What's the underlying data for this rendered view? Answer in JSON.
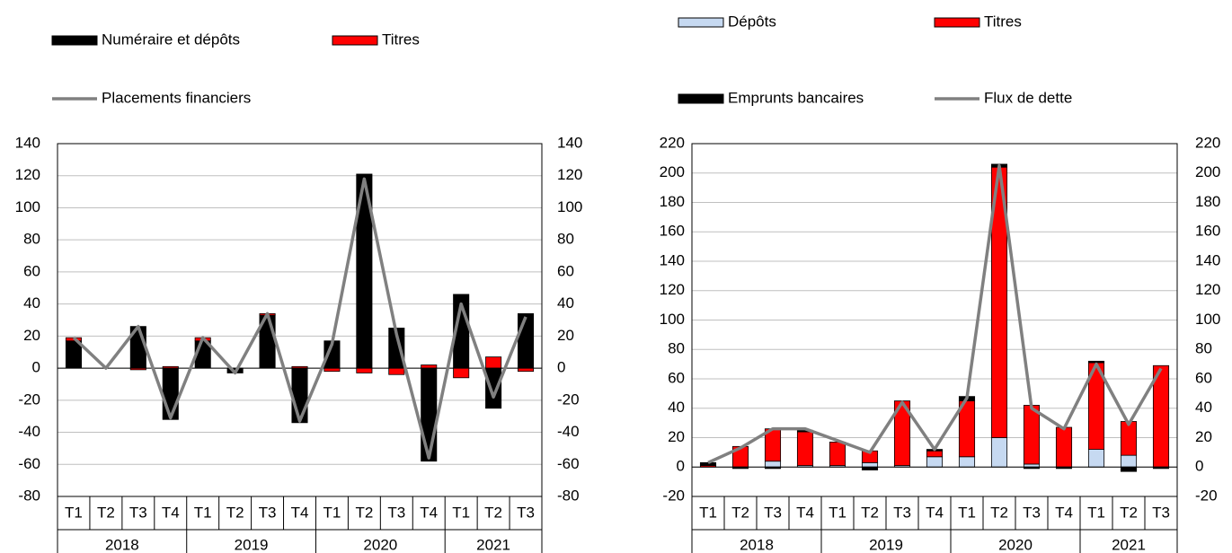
{
  "chart_data": [
    {
      "type": "bar",
      "categories": [
        "T1",
        "T2",
        "T3",
        "T4",
        "T1",
        "T2",
        "T3",
        "T4",
        "T1",
        "T2",
        "T3",
        "T4",
        "T1",
        "T2",
        "T3"
      ],
      "x_groups": [
        "2018",
        "2019",
        "2020",
        "2021"
      ],
      "series": [
        {
          "name": "Numéraire et dépôts",
          "type": "bar",
          "color": "#000000",
          "values": [
            17,
            0,
            26,
            -32,
            17,
            -3,
            33,
            -34,
            17,
            121,
            25,
            -58,
            46,
            -25,
            34
          ]
        },
        {
          "name": "Titres",
          "type": "bar",
          "color": "#ff0000",
          "values": [
            2,
            0,
            -1,
            1,
            2,
            0,
            1,
            1,
            -2,
            -3,
            -4,
            2,
            -6,
            7,
            -2
          ]
        },
        {
          "name": "Placements financiers",
          "type": "line",
          "color": "#808080",
          "values": [
            19,
            0,
            26,
            -31,
            19,
            -3,
            34,
            -33,
            15,
            118,
            21,
            -56,
            40,
            -18,
            32
          ]
        }
      ],
      "ylim": [
        -80,
        140
      ],
      "yticks": [
        -80,
        -60,
        -40,
        -20,
        0,
        20,
        40,
        60,
        80,
        100,
        120,
        140
      ],
      "y2lim": [
        -80,
        140
      ],
      "y2ticks": [
        -80,
        -60,
        -40,
        -20,
        0,
        20,
        40,
        60,
        80,
        100,
        120,
        140
      ],
      "grid": true
    },
    {
      "type": "bar",
      "categories": [
        "T1",
        "T2",
        "T3",
        "T4",
        "T1",
        "T2",
        "T3",
        "T4",
        "T1",
        "T2",
        "T3",
        "T4",
        "T1",
        "T2",
        "T3"
      ],
      "x_groups": [
        "2018",
        "2019",
        "2020",
        "2021"
      ],
      "series": [
        {
          "name": "Dépôts",
          "type": "bar",
          "color": "#c6d9f1",
          "values": [
            0,
            0,
            4,
            1,
            1,
            3,
            1,
            7,
            7,
            20,
            2,
            0,
            12,
            8,
            0
          ]
        },
        {
          "name": "Titres",
          "type": "bar",
          "color": "#ff0000",
          "values": [
            1,
            14,
            22,
            23,
            16,
            8,
            44,
            4,
            38,
            184,
            40,
            27,
            59,
            23,
            69
          ]
        },
        {
          "name": "Emprunts bancaires",
          "type": "bar",
          "color": "#000000",
          "values": [
            2,
            -1,
            -1,
            1,
            0,
            -2,
            0,
            1,
            3,
            2,
            -1,
            -1,
            1,
            -3,
            -1
          ]
        },
        {
          "name": "Flux de dette",
          "type": "line",
          "color": "#808080",
          "values": [
            3,
            13,
            26,
            26,
            18,
            10,
            44,
            12,
            47,
            205,
            40,
            26,
            70,
            29,
            67
          ]
        }
      ],
      "ylim": [
        -20,
        220
      ],
      "yticks": [
        -20,
        0,
        20,
        40,
        60,
        80,
        100,
        120,
        140,
        160,
        180,
        200,
        220
      ],
      "y2lim": [
        -20,
        220
      ],
      "y2ticks": [
        -20,
        0,
        20,
        40,
        60,
        80,
        100,
        120,
        140,
        160,
        180,
        200,
        220
      ],
      "grid": true
    }
  ]
}
